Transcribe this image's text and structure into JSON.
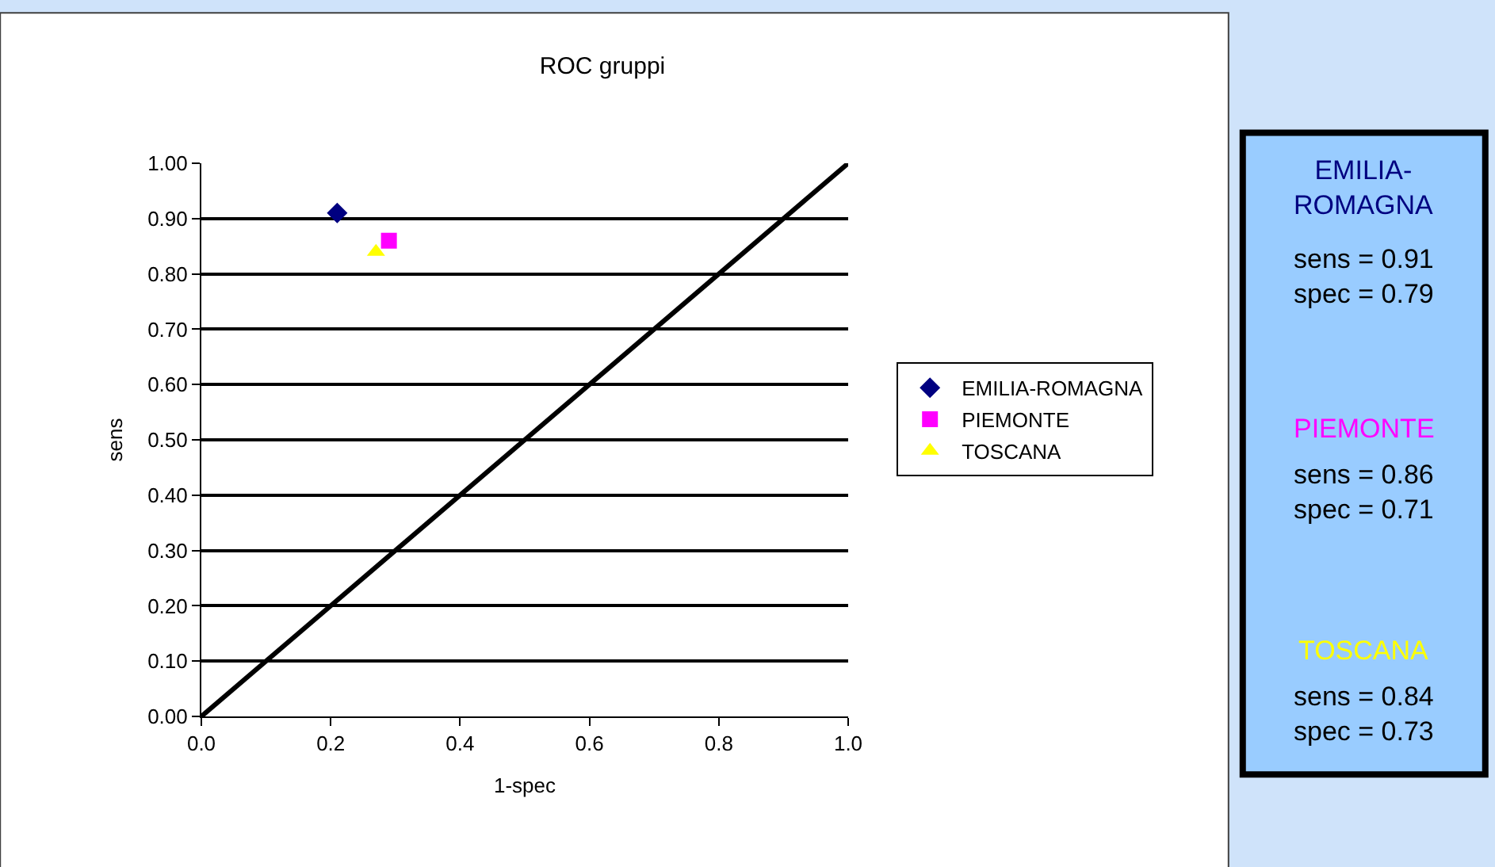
{
  "chart_data": {
    "type": "scatter",
    "title": "ROC gruppi",
    "xlabel": "1-spec",
    "ylabel": "sens",
    "xlim": [
      0,
      1
    ],
    "ylim": [
      0,
      1
    ],
    "xticks": [
      {
        "value": 0,
        "label": "0.0"
      },
      {
        "value": 0.2,
        "label": "0.2"
      },
      {
        "value": 0.4,
        "label": "0.4"
      },
      {
        "value": 0.6,
        "label": "0.6"
      },
      {
        "value": 0.8,
        "label": "0.8"
      },
      {
        "value": 1,
        "label": "1.0"
      }
    ],
    "yticks": [
      {
        "value": 0,
        "label": "0.00"
      },
      {
        "value": 0.1,
        "label": "0.10"
      },
      {
        "value": 0.2,
        "label": "0.20"
      },
      {
        "value": 0.3,
        "label": "0.30"
      },
      {
        "value": 0.4,
        "label": "0.40"
      },
      {
        "value": 0.5,
        "label": "0.50"
      },
      {
        "value": 0.6,
        "label": "0.60"
      },
      {
        "value": 0.7,
        "label": "0.70"
      },
      {
        "value": 0.8,
        "label": "0.80"
      },
      {
        "value": 0.9,
        "label": "0.90"
      },
      {
        "value": 1,
        "label": "1.00"
      }
    ],
    "grid": "y",
    "legend": "right",
    "series": [
      {
        "name": "EMILIA-ROMAGNA",
        "color": "#000080",
        "marker": "diamond",
        "x": [
          0.21
        ],
        "values": [
          0.91
        ]
      },
      {
        "name": "PIEMONTE",
        "color": "#ff00ff",
        "marker": "square",
        "x": [
          0.29
        ],
        "values": [
          0.86
        ]
      },
      {
        "name": "TOSCANA",
        "color": "#ffff00",
        "marker": "triangle",
        "x": [
          0.27
        ],
        "values": [
          0.84
        ]
      },
      {
        "type": "line",
        "color": "#000000",
        "marker": "none",
        "line_style": "solid",
        "x": [
          0,
          1
        ],
        "values": [
          0,
          1
        ]
      }
    ],
    "annotations": [
      "EMILIA-\nROMAGNA",
      "sens = 0.91\nspec = 0.79",
      "PIEMONTE",
      "sens = 0.86\nspec = 0.71",
      "TOSCANA",
      "sens = 0.84\nspec = 0.73"
    ]
  }
}
